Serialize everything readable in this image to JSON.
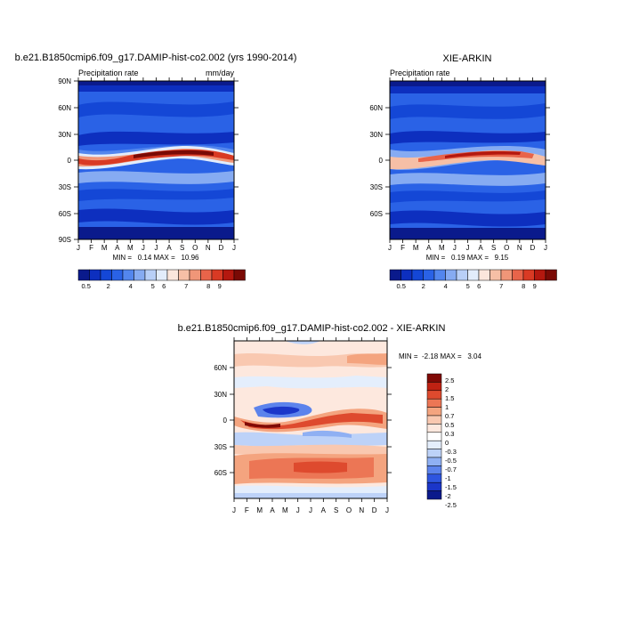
{
  "chart_data": [
    {
      "type": "heatmap",
      "title": "b.e21.B1850cmip6.f09_g17.DAMIP-hist-co2.002 (yrs 1990-2014)",
      "subtitle_left": "Precipitation rate",
      "subtitle_right": "mm/day",
      "x_ticks": [
        "J",
        "F",
        "M",
        "A",
        "M",
        "J",
        "J",
        "A",
        "S",
        "O",
        "N",
        "D",
        "J"
      ],
      "y_ticks": [
        "90N",
        "60N",
        "30N",
        "0",
        "30S",
        "60S",
        "90S"
      ],
      "stats": "MIN =   0.14 MAX =   10.96",
      "colorbar_labels": [
        "0.5",
        "2",
        "4",
        "5",
        "6",
        "7",
        "8",
        "9"
      ]
    },
    {
      "type": "heatmap",
      "title": "XIE-ARKIN",
      "subtitle_left": "Precipitation rate",
      "x_ticks": [
        "J",
        "F",
        "M",
        "A",
        "M",
        "J",
        "J",
        "A",
        "S",
        "O",
        "N",
        "D",
        "J"
      ],
      "y_ticks": [
        "60N",
        "30N",
        "0",
        "30S",
        "60S"
      ],
      "stats": "MIN =   0.19 MAX =   9.15",
      "colorbar_labels": [
        "0.5",
        "2",
        "4",
        "5",
        "6",
        "7",
        "8",
        "9"
      ]
    },
    {
      "type": "heatmap",
      "title": "b.e21.B1850cmip6.f09_g17.DAMIP-hist-co2.002 - XIE-ARKIN",
      "x_ticks": [
        "J",
        "F",
        "M",
        "A",
        "M",
        "J",
        "J",
        "A",
        "S",
        "O",
        "N",
        "D",
        "J"
      ],
      "y_ticks": [
        "60N",
        "30N",
        "0",
        "30S",
        "60S"
      ],
      "stats": "MIN =  -2.18 MAX =   3.04",
      "colorbar_labels": [
        "2.5",
        "2",
        "1.5",
        "1",
        "0.7",
        "0.5",
        "0.3",
        "0",
        "-0.3",
        "-0.5",
        "-0.7",
        "-1",
        "-1.5",
        "-2",
        "-2.5"
      ]
    }
  ],
  "colors": {
    "precip_scale": [
      "#0a1a8c",
      "#0d2fbf",
      "#1447d6",
      "#2a62e6",
      "#5386ee",
      "#86abf2",
      "#b8cff7",
      "#e2ecfb",
      "#fbe6dc",
      "#f6bfa6",
      "#f09678",
      "#e8644a",
      "#d93a24",
      "#b4180f",
      "#7a0a05"
    ],
    "diff_scale": [
      "#0a1a8c",
      "#1b36c9",
      "#2e55e0",
      "#5c83ec",
      "#8fb0f3",
      "#bdd2f8",
      "#e4eefc",
      "#ffffff",
      "#fde8de",
      "#f9c8b0",
      "#f4a47f",
      "#ec7655",
      "#de4a2e",
      "#bf2213",
      "#800a06"
    ]
  }
}
